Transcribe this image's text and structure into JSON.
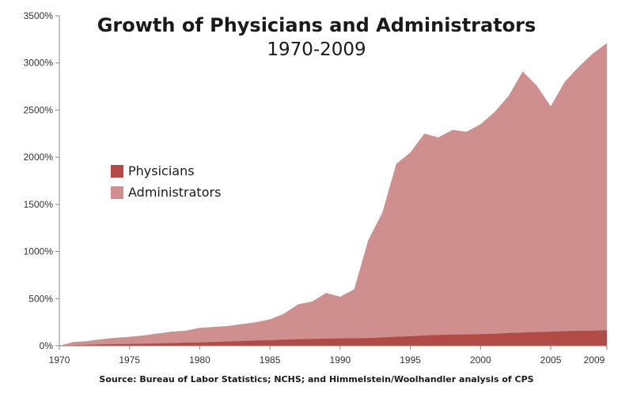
{
  "chart_data": {
    "type": "area",
    "title": "Growth of Physicians and Administrators",
    "subtitle": "1970-2009",
    "xlabel": "",
    "ylabel": "",
    "x": [
      1970,
      1971,
      1972,
      1973,
      1974,
      1975,
      1976,
      1977,
      1978,
      1979,
      1980,
      1981,
      1982,
      1983,
      1984,
      1985,
      1986,
      1987,
      1988,
      1989,
      1990,
      1991,
      1992,
      1993,
      1994,
      1995,
      1996,
      1997,
      1998,
      1999,
      2000,
      2001,
      2002,
      2003,
      2004,
      2005,
      2006,
      2007,
      2008,
      2009
    ],
    "xlim": [
      1970,
      2009
    ],
    "ylim": [
      0,
      3500
    ],
    "y_ticks": [
      0,
      500,
      1000,
      1500,
      2000,
      2500,
      3000,
      3500
    ],
    "y_tick_labels": [
      "0%",
      "500%",
      "1000%",
      "1500%",
      "2000%",
      "2500%",
      "3000%",
      "3500%"
    ],
    "x_ticks": [
      1970,
      1975,
      1980,
      1985,
      1990,
      1995,
      2000,
      2005,
      2009
    ],
    "x_tick_labels": [
      "1970",
      "1975",
      "1980",
      "1985",
      "1990",
      "1995",
      "2000",
      "2005",
      "2009"
    ],
    "series": [
      {
        "name": "Physicians",
        "color": "#b24a46",
        "values": [
          0,
          5,
          10,
          15,
          18,
          20,
          22,
          25,
          28,
          32,
          35,
          40,
          45,
          50,
          55,
          60,
          65,
          70,
          72,
          75,
          78,
          80,
          82,
          88,
          95,
          102,
          110,
          115,
          118,
          120,
          122,
          128,
          135,
          140,
          145,
          150,
          155,
          158,
          160,
          165
        ]
      },
      {
        "name": "Administrators",
        "color": "#cf8f8e",
        "values": [
          0,
          40,
          50,
          70,
          85,
          95,
          110,
          130,
          150,
          160,
          190,
          200,
          210,
          230,
          250,
          280,
          340,
          440,
          470,
          560,
          520,
          600,
          1120,
          1410,
          1930,
          2050,
          2250,
          2210,
          2290,
          2270,
          2350,
          2480,
          2650,
          2910,
          2760,
          2540,
          2800,
          2960,
          3100,
          3210
        ]
      }
    ],
    "legend": "left-center",
    "grid": false,
    "source": "Source: Bureau of Labor Statistics; NCHS; and Himmelstein/Woolhandler analysis of CPS"
  }
}
